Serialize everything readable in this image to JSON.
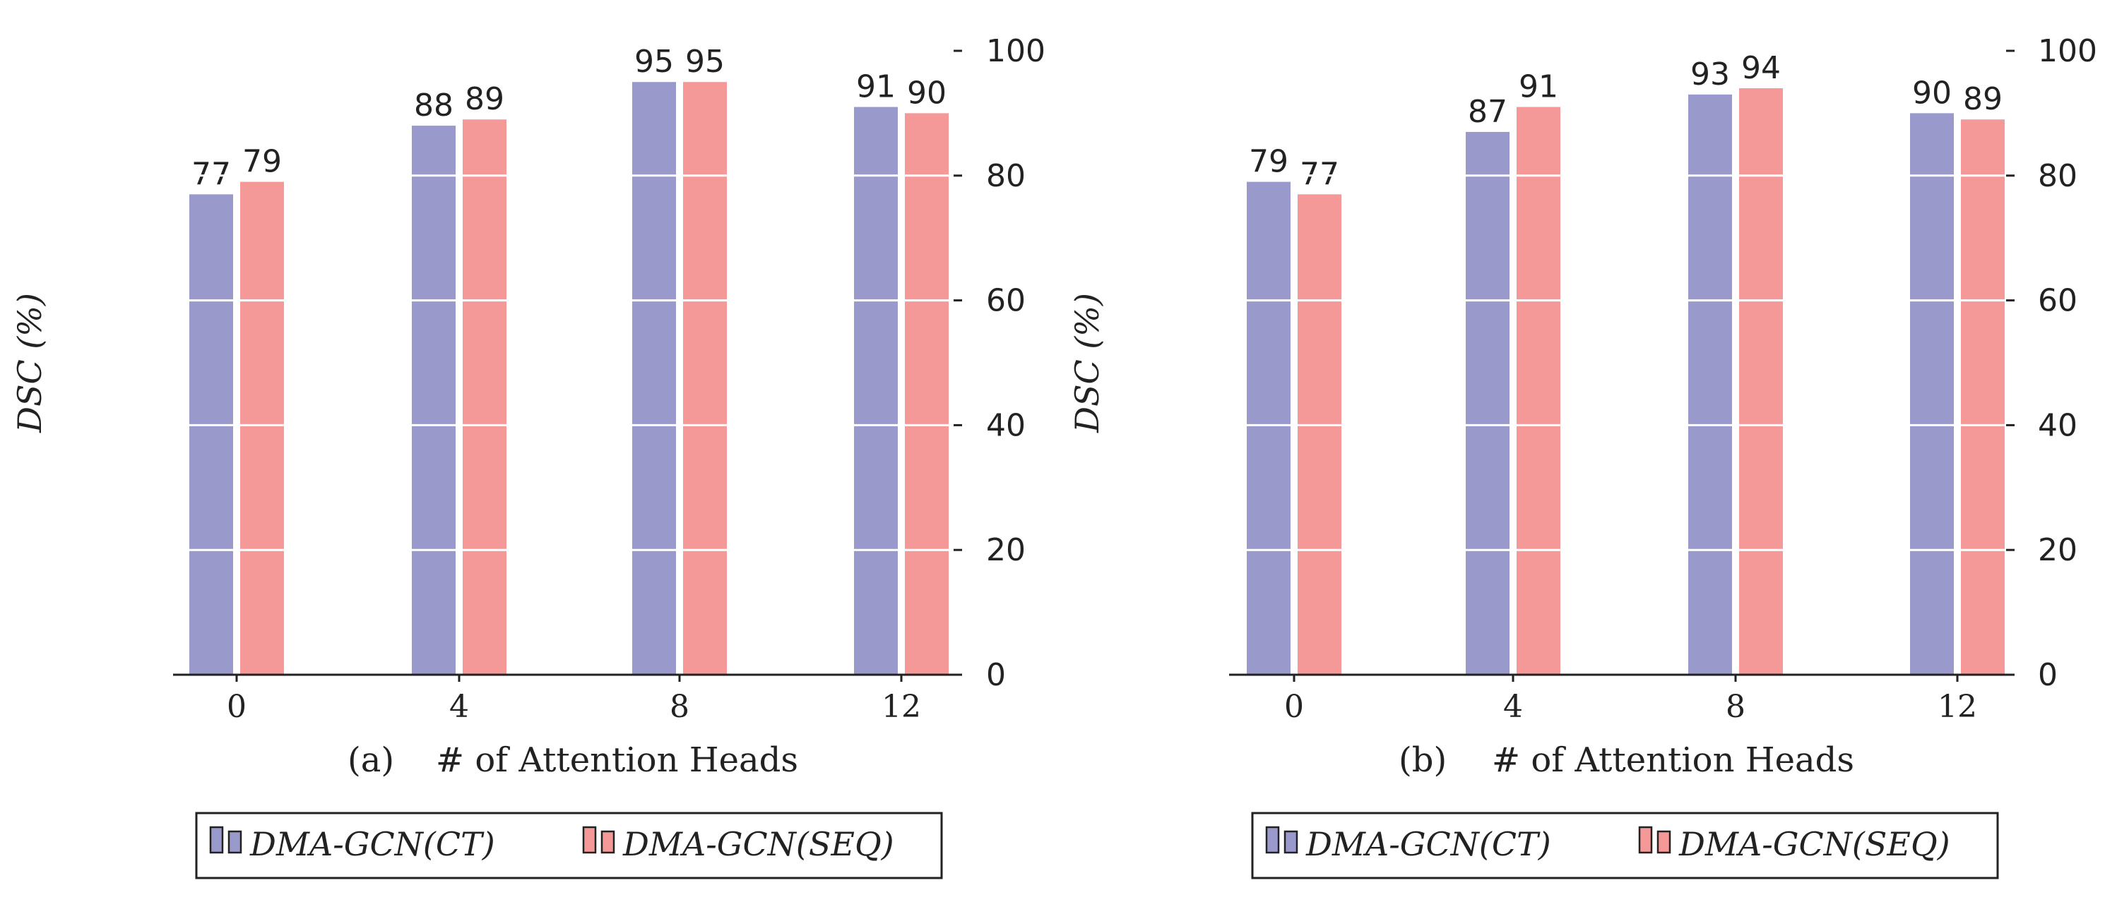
{
  "chart_data": [
    {
      "type": "bar",
      "panel_label": "(a)",
      "xlabel": "# of Attention Heads",
      "ylabel": "DSC (%)",
      "categories": [
        "0",
        "4",
        "8",
        "12"
      ],
      "series": [
        {
          "name": "DMA-GCN(CT)",
          "values": [
            77,
            88,
            95,
            91
          ]
        },
        {
          "name": "DMA-GCN(SEQ)",
          "values": [
            79,
            89,
            95,
            90
          ]
        }
      ],
      "ylim": [
        0,
        100
      ],
      "yticks": [
        "0",
        "20",
        "40",
        "60",
        "80",
        "100"
      ],
      "yaxis_side": "right",
      "grid": "white horizontal lines over bars",
      "legend_placement": "below"
    },
    {
      "type": "bar",
      "panel_label": "(b)",
      "xlabel": "# of Attention Heads",
      "ylabel": "DSC (%)",
      "categories": [
        "0",
        "4",
        "8",
        "12"
      ],
      "series": [
        {
          "name": "DMA-GCN(CT)",
          "values": [
            79,
            87,
            93,
            90
          ]
        },
        {
          "name": "DMA-GCN(SEQ)",
          "values": [
            77,
            91,
            94,
            89
          ]
        }
      ],
      "ylim": [
        0,
        100
      ],
      "yticks": [
        "0",
        "20",
        "40",
        "60",
        "80",
        "100"
      ],
      "yaxis_side": "right",
      "grid": "white horizontal lines over bars",
      "legend_placement": "below"
    }
  ],
  "colors": {
    "series": [
      "#9999cc",
      "#f49898"
    ],
    "axis": "#222222",
    "grid": "#ffffff",
    "background": "#ffffff"
  }
}
